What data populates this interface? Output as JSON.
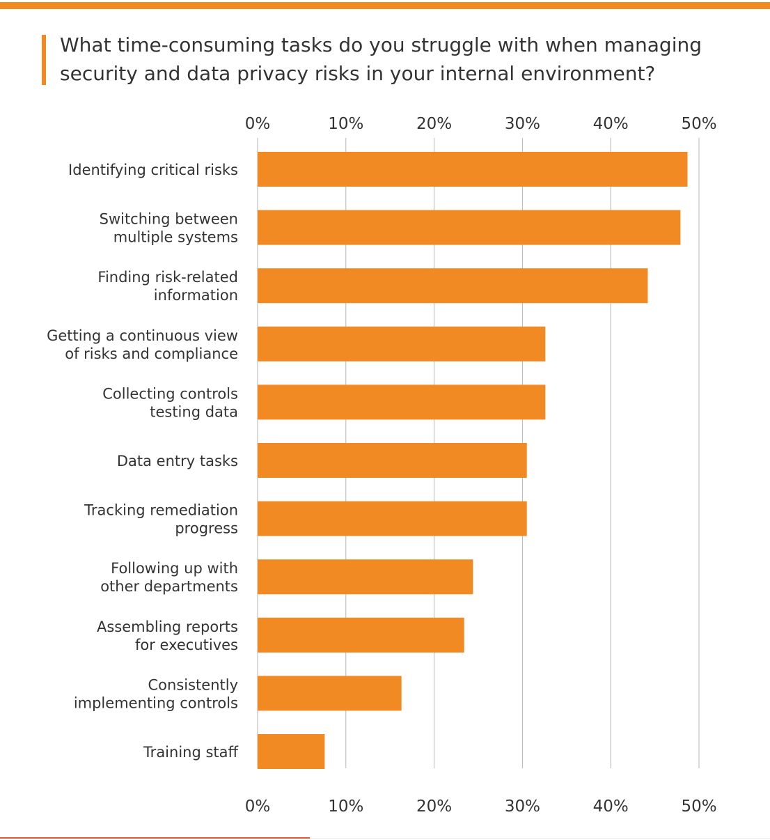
{
  "title": "What time-consuming tasks do you struggle with when managing\nsecurity and data privacy risks in your internal environment?",
  "colors": {
    "bar": "#f28a24",
    "accent": "#f28a24",
    "grid": "#b5b5b5",
    "text": "#333333"
  },
  "chart_data": {
    "type": "bar",
    "orientation": "horizontal",
    "title": "What time-consuming tasks do you struggle with when managing security and data privacy risks in your internal environment?",
    "xlabel": "",
    "ylabel": "",
    "xlim": [
      0,
      50
    ],
    "ticks": [
      0,
      10,
      20,
      30,
      40,
      50
    ],
    "tick_labels": [
      "0%",
      "10%",
      "20%",
      "30%",
      "40%",
      "50%"
    ],
    "axis_positions": [
      "top",
      "bottom"
    ],
    "grid": true,
    "categories": [
      "Identifying critical risks",
      "Switching between multiple systems",
      "Finding risk-related information",
      "Getting a continuous view of risks and compliance",
      "Collecting controls testing data",
      "Data entry tasks",
      "Tracking remediation progress",
      "Following up with other departments",
      "Assembling reports for executives",
      "Consistently implementing controls",
      "Training staff"
    ],
    "category_lines": [
      [
        "Identifying critical risks"
      ],
      [
        "Switching between",
        "multiple systems"
      ],
      [
        "Finding risk-related",
        "information"
      ],
      [
        "Getting a continuous view",
        "of risks and compliance"
      ],
      [
        "Collecting controls",
        "testing data"
      ],
      [
        "Data entry tasks"
      ],
      [
        "Tracking remediation",
        "progress"
      ],
      [
        "Following up with",
        "other departments"
      ],
      [
        "Assembling reports",
        "for executives"
      ],
      [
        "Consistently",
        "implementing controls"
      ],
      [
        "Training staff"
      ]
    ],
    "values": [
      48.7,
      47.9,
      44.2,
      32.6,
      32.6,
      30.5,
      30.5,
      24.4,
      23.4,
      16.3,
      7.6
    ]
  }
}
